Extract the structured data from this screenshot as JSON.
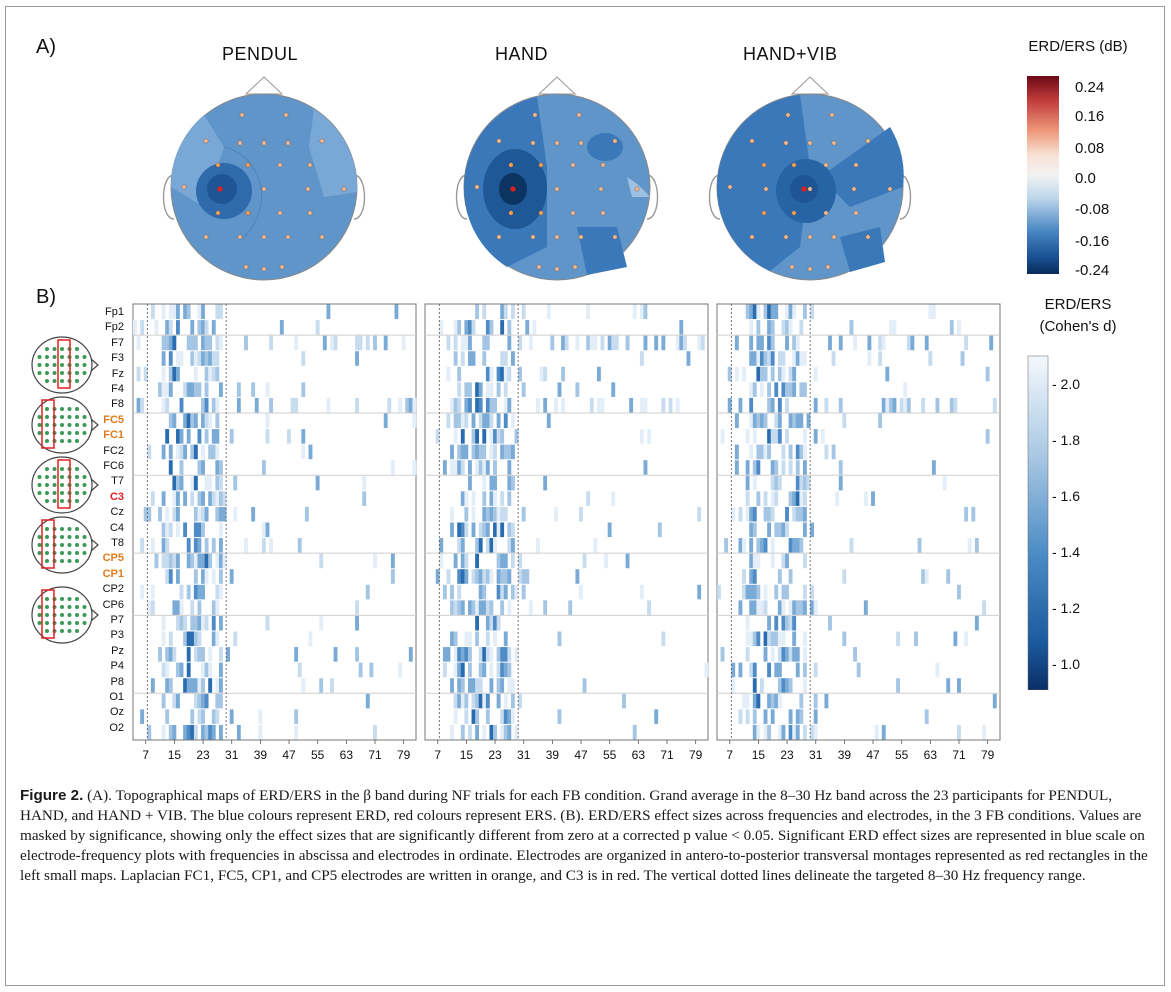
{
  "panel_a_label": "A)",
  "panel_b_label": "B)",
  "conditions": [
    "PENDUL",
    "HAND",
    "HAND+VIB"
  ],
  "colorbar_a": {
    "title": "ERD/ERS (dB)",
    "ticks": [
      "0.24",
      "0.16",
      "0.08",
      "0.0",
      "-0.08",
      "-0.16",
      "-0.24"
    ]
  },
  "colorbar_b": {
    "title_line1": "ERD/ERS",
    "title_line2": "(Cohen's d)",
    "ticks": [
      "- 2.0",
      "- 1.8",
      "- 1.6",
      "- 1.4",
      "- 1.2",
      "- 1.0"
    ]
  },
  "electrodes": [
    "Fp1",
    "Fp2",
    "F7",
    "F3",
    "Fz",
    "F4",
    "F8",
    "FC5",
    "FC1",
    "FC2",
    "FC6",
    "T7",
    "C3",
    "Cz",
    "C4",
    "T8",
    "CP5",
    "CP1",
    "CP2",
    "CP6",
    "P7",
    "P3",
    "Pz",
    "P4",
    "P8",
    "O1",
    "Oz",
    "O2"
  ],
  "highlight": {
    "orange": [
      "FC5",
      "FC1",
      "CP5",
      "CP1"
    ],
    "red": [
      "C3"
    ]
  },
  "x_ticks": [
    "7",
    "15",
    "23",
    "31",
    "39",
    "47",
    "55",
    "63",
    "71",
    "79"
  ],
  "colors": {
    "orange": "#e07b1f",
    "red": "#e02020",
    "blue_dark": "#0b3d7a",
    "blue_mid": "#3f7fc0",
    "blue_light": "#d6e6f4"
  },
  "caption": {
    "fig_label": "Figure 2.",
    "text": " (A). Topographical maps of ERD/ERS in the β band during NF trials for each FB condition. Grand average in the 8–30 Hz band across the 23 participants for PENDUL, HAND, and HAND + VIB. The blue colours represent ERD, red colours represent ERS. (B). ERD/ERS effect sizes across frequencies and electrodes, in the 3 FB conditions. Values are masked by significance, showing only the effect sizes that are significantly different from zero at a corrected p value < 0.05. Significant ERD effect sizes are represented in blue scale on electrode-frequency plots with frequencies in abscissa and electrodes in ordinate. Electrodes are organized in antero-to-posterior transversal montages represented as red rectangles in the left small maps. Laplacian FC1, FC5, CP1, and CP5 electrodes are written in orange, and C3 is in red. The vertical dotted lines delineate the targeted 8–30 Hz frequency range."
  }
}
